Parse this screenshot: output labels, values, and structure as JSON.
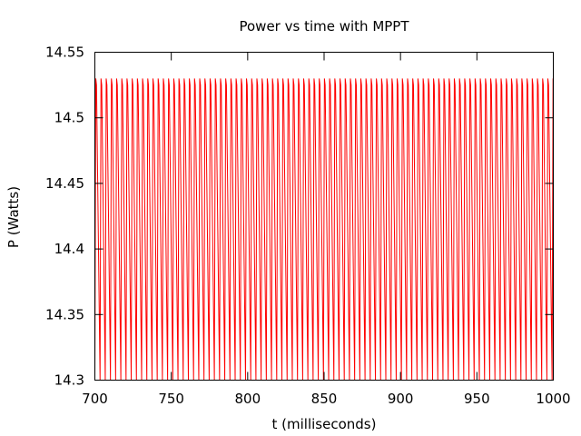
{
  "chart_data": {
    "type": "line",
    "title": "Power vs time with MPPT",
    "xlabel": "t (milliseconds)",
    "ylabel": "P (Watts)",
    "xlim": [
      700,
      1000
    ],
    "ylim": [
      14.3,
      14.55
    ],
    "x_ticks": [
      "700",
      "750",
      "800",
      "850",
      "900",
      "950",
      "1000"
    ],
    "y_ticks": [
      "14.3",
      "14.35",
      "14.4",
      "14.45",
      "14.5",
      "14.55"
    ],
    "grid": false,
    "legend": "none",
    "series": [
      {
        "color": "#ff0000",
        "waveform": "periodic oscillation",
        "period": 3.4,
        "min": 14.3,
        "max": 14.53,
        "x_range": [
          700,
          1000
        ]
      }
    ]
  },
  "colors": {
    "series": "#ff0000",
    "axes": "#000000",
    "background": "#ffffff"
  }
}
